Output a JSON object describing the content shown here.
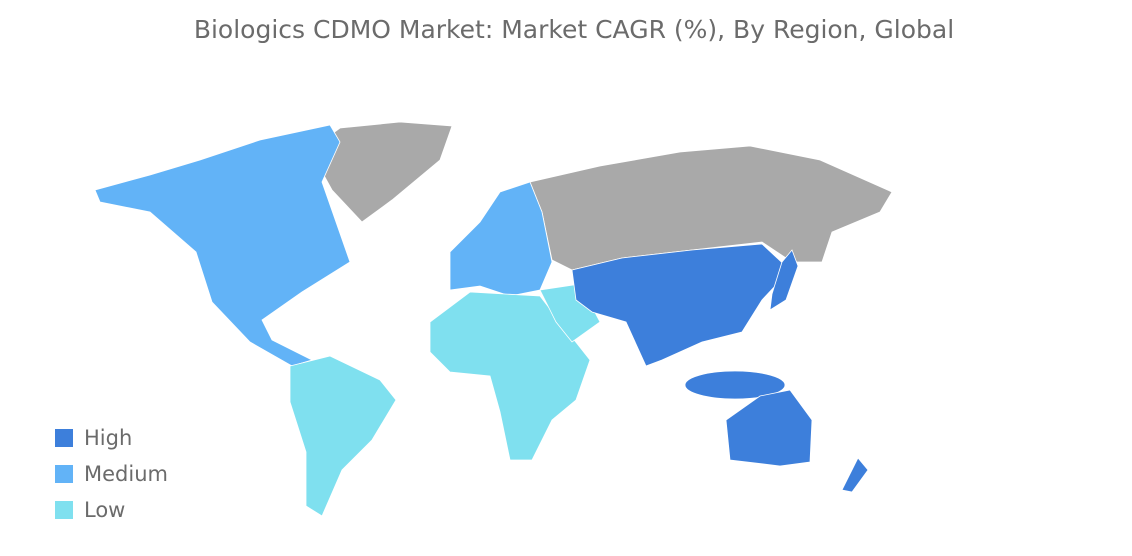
{
  "title": "Biologics CDMO Market: Market CAGR (%), By Region, Global",
  "legend": [
    {
      "label": "High",
      "color": "#3d7fdb"
    },
    {
      "label": "Medium",
      "color": "#62b3f7"
    },
    {
      "label": "Low",
      "color": "#7fe0ef"
    }
  ]
}
